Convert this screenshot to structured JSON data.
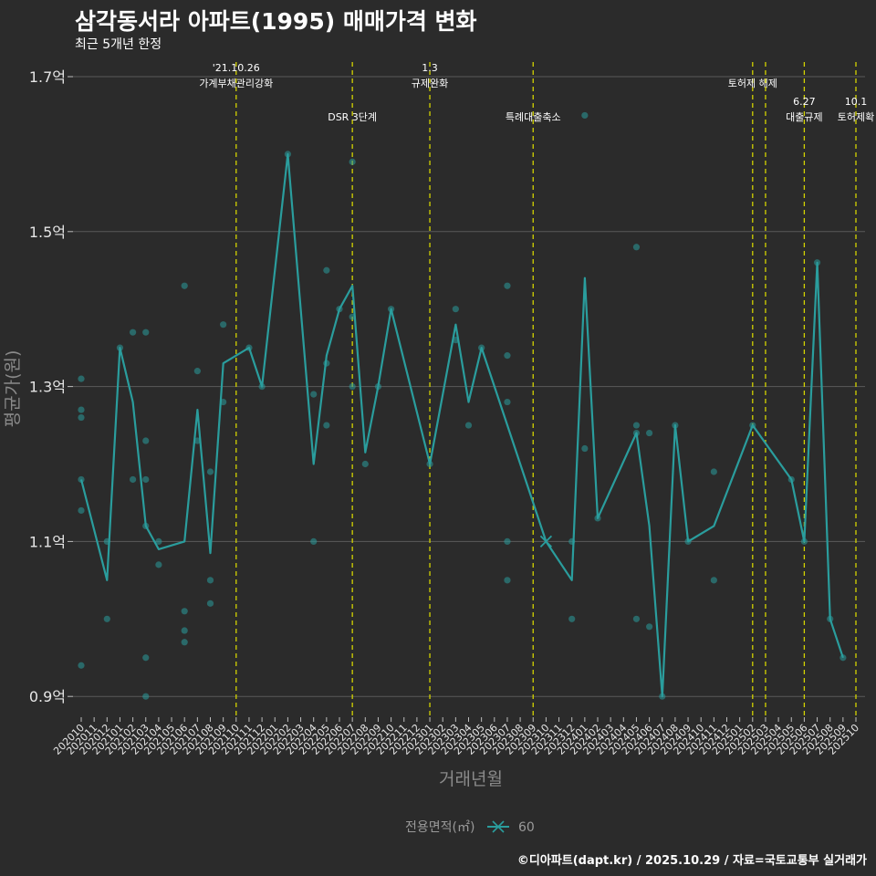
{
  "header": {
    "title": "삼각동서라 아파트(1995) 매매가격 변화",
    "subtitle": "최근 5개년 한정"
  },
  "footer": {
    "credit": "©디아파트(dapt.kr) / 2025.10.29 / 자료=국토교통부 실거래가"
  },
  "chart_data": {
    "type": "line",
    "title": "삼각동서라 아파트(1995) 매매가격 변화",
    "xlabel": "거래년월",
    "ylabel": "평균가(원)",
    "ylim": [
      0.87,
      1.72
    ],
    "yticks": [
      0.9,
      1.1,
      1.3,
      1.5,
      1.7
    ],
    "ytick_labels": [
      "0.9억",
      "1.1억",
      "1.3억",
      "1.5억",
      "1.7억"
    ],
    "categories": [
      "202010",
      "202011",
      "202012",
      "202101",
      "202102",
      "202103",
      "202104",
      "202105",
      "202106",
      "202107",
      "202108",
      "202109",
      "202110",
      "202111",
      "202112",
      "202201",
      "202202",
      "202203",
      "202204",
      "202205",
      "202206",
      "202207",
      "202208",
      "202209",
      "202210",
      "202211",
      "202212",
      "202301",
      "202302",
      "202303",
      "202304",
      "202305",
      "202306",
      "202307",
      "202308",
      "202309",
      "202310",
      "202311",
      "202312",
      "202401",
      "202402",
      "202403",
      "202404",
      "202405",
      "202406",
      "202407",
      "202408",
      "202409",
      "202410",
      "202411",
      "202412",
      "202501",
      "202502",
      "202503",
      "202504",
      "202505",
      "202506",
      "202507",
      "202508",
      "202509",
      "202510"
    ],
    "series": [
      {
        "name": "60",
        "color": "#2a9d9d",
        "line": [
          [
            0,
            1.18
          ],
          [
            2,
            1.05
          ],
          [
            3,
            1.35
          ],
          [
            4,
            1.28
          ],
          [
            5,
            1.12
          ],
          [
            6,
            1.09
          ],
          [
            8,
            1.1
          ],
          [
            9,
            1.27
          ],
          [
            10,
            1.085
          ],
          [
            11,
            1.33
          ],
          [
            13,
            1.35
          ],
          [
            14,
            1.3
          ],
          [
            16,
            1.6
          ],
          [
            18,
            1.2
          ],
          [
            19,
            1.34
          ],
          [
            20,
            1.4
          ],
          [
            21,
            1.43
          ],
          [
            22,
            1.215
          ],
          [
            23,
            1.3
          ],
          [
            24,
            1.4
          ],
          [
            27,
            1.2
          ],
          [
            29,
            1.38
          ],
          [
            30,
            1.28
          ],
          [
            31,
            1.35
          ],
          [
            33,
            1.25
          ],
          [
            36,
            1.1
          ],
          [
            38,
            1.05
          ],
          [
            39,
            1.44
          ],
          [
            40,
            1.13
          ],
          [
            43,
            1.24
          ],
          [
            44,
            1.12
          ],
          [
            45,
            0.9
          ],
          [
            46,
            1.25
          ],
          [
            47,
            1.1
          ],
          [
            49,
            1.12
          ],
          [
            52,
            1.25
          ],
          [
            55,
            1.18
          ],
          [
            56,
            1.1
          ],
          [
            57,
            1.46
          ],
          [
            58,
            1.0
          ],
          [
            59,
            0.95
          ]
        ],
        "points": [
          [
            0,
            1.31
          ],
          [
            0,
            1.27
          ],
          [
            0,
            1.26
          ],
          [
            0,
            1.18
          ],
          [
            0,
            1.14
          ],
          [
            0,
            0.94
          ],
          [
            2,
            1.1
          ],
          [
            2,
            1.0
          ],
          [
            3,
            1.35
          ],
          [
            4,
            1.37
          ],
          [
            4,
            1.18
          ],
          [
            5,
            1.37
          ],
          [
            5,
            1.23
          ],
          [
            5,
            1.18
          ],
          [
            5,
            1.12
          ],
          [
            5,
            0.95
          ],
          [
            5,
            0.9
          ],
          [
            6,
            1.1
          ],
          [
            6,
            1.07
          ],
          [
            8,
            1.43
          ],
          [
            8,
            1.01
          ],
          [
            8,
            0.985
          ],
          [
            8,
            0.97
          ],
          [
            9,
            1.32
          ],
          [
            9,
            1.23
          ],
          [
            10,
            1.19
          ],
          [
            10,
            1.05
          ],
          [
            10,
            1.02
          ],
          [
            11,
            1.38
          ],
          [
            11,
            1.28
          ],
          [
            13,
            1.35
          ],
          [
            14,
            1.3
          ],
          [
            16,
            1.6
          ],
          [
            18,
            1.29
          ],
          [
            18,
            1.1
          ],
          [
            19,
            1.45
          ],
          [
            19,
            1.33
          ],
          [
            19,
            1.25
          ],
          [
            20,
            1.4
          ],
          [
            21,
            1.59
          ],
          [
            21,
            1.39
          ],
          [
            21,
            1.3
          ],
          [
            22,
            1.2
          ],
          [
            23,
            1.3
          ],
          [
            24,
            1.4
          ],
          [
            27,
            1.2
          ],
          [
            29,
            1.4
          ],
          [
            29,
            1.36
          ],
          [
            30,
            1.25
          ],
          [
            31,
            1.35
          ],
          [
            33,
            1.43
          ],
          [
            33,
            1.34
          ],
          [
            33,
            1.28
          ],
          [
            33,
            1.1
          ],
          [
            33,
            1.05
          ],
          [
            38,
            1.1
          ],
          [
            38,
            1.0
          ],
          [
            39,
            1.65
          ],
          [
            39,
            1.22
          ],
          [
            40,
            1.13
          ],
          [
            43,
            1.48
          ],
          [
            43,
            1.25
          ],
          [
            43,
            1.24
          ],
          [
            43,
            1.0
          ],
          [
            44,
            1.24
          ],
          [
            44,
            0.99
          ],
          [
            45,
            0.9
          ],
          [
            46,
            1.25
          ],
          [
            47,
            1.1
          ],
          [
            49,
            1.19
          ],
          [
            49,
            1.05
          ],
          [
            52,
            1.25
          ],
          [
            55,
            1.18
          ],
          [
            56,
            1.1
          ],
          [
            57,
            1.46
          ],
          [
            58,
            1.0
          ],
          [
            59,
            0.95
          ]
        ],
        "cross_marker": [
          36,
          1.1
        ]
      }
    ],
    "events": [
      {
        "x": 12,
        "lines": [
          "'21.10.26",
          "가계부채관리강화"
        ],
        "row": 1
      },
      {
        "x": 21,
        "lines": [
          "DSR 3단계"
        ],
        "row": 2
      },
      {
        "x": 27,
        "lines": [
          "1.3",
          "규제완화"
        ],
        "row": 1
      },
      {
        "x": 35,
        "lines": [
          "특례대출축소"
        ],
        "row": 2
      },
      {
        "x": 52,
        "lines": [
          "토허제 해제"
        ],
        "row": 1
      },
      {
        "x": 53,
        "lines": [],
        "row": 1
      },
      {
        "x": 56,
        "lines": [
          "6.27",
          "대출규제"
        ],
        "row": 2
      },
      {
        "x": 60,
        "lines": [
          "10.1",
          "토허제확"
        ],
        "row": 2
      }
    ],
    "event_line_color": "#d4d400",
    "legend": {
      "title": "전용면적(㎡)",
      "entries": [
        "60"
      ],
      "position": "bottom"
    }
  }
}
